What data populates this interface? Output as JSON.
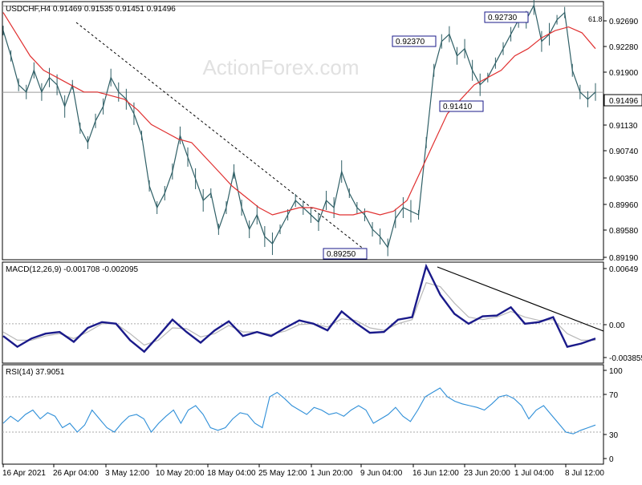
{
  "watermark": "ActionForex.com",
  "colors": {
    "price": "#2f5f66",
    "ma": "#e03030",
    "macd": "#1a1a8a",
    "macd_signal": "#b8b8b8",
    "rsi": "#2f8fd8",
    "trendline": "#000000",
    "level": "#9a9a9a",
    "label_box": "#1a1a8a",
    "frame": "#000000"
  },
  "chart_data": [
    {
      "type": "line",
      "panel": "price",
      "title": "USDCHF,H4  0.91469 0.91535 0.91451 0.91496",
      "ylim": [
        0.8919,
        0.9274
      ],
      "y_ticks": [
        "0.92690",
        "0.92280",
        "0.91900",
        "0.91496",
        "0.91130",
        "0.90740",
        "0.90350",
        "0.89960",
        "0.89580",
        "0.89190"
      ],
      "last_price": "0.91496",
      "fib_label": "61.8",
      "fib_level": 0.9269,
      "annotations": [
        {
          "label": "0.92730",
          "x": "1 Jul 2021",
          "y": 0.9273
        },
        {
          "label": "0.92370",
          "x": "18 Jun 2021",
          "y": 0.9237
        },
        {
          "label": "0.91410",
          "x": "21 Jun 2021",
          "y": 0.9141
        },
        {
          "label": "0.89250",
          "x": "11 Jun 2021",
          "y": 0.8925
        }
      ],
      "series": [
        {
          "name": "price",
          "values": [
            0.9235,
            0.92,
            0.916,
            0.915,
            0.918,
            0.915,
            0.917,
            0.916,
            0.913,
            0.916,
            0.91,
            0.908,
            0.911,
            0.913,
            0.917,
            0.915,
            0.914,
            0.912,
            0.909,
            0.902,
            0.899,
            0.901,
            0.904,
            0.909,
            0.906,
            0.903,
            0.9,
            0.901,
            0.896,
            0.899,
            0.904,
            0.899,
            0.896,
            0.898,
            0.895,
            0.894,
            0.896,
            0.898,
            0.9,
            0.899,
            0.898,
            0.897,
            0.9,
            0.899,
            0.904,
            0.901,
            0.899,
            0.898,
            0.896,
            0.895,
            0.8935,
            0.8975,
            0.899,
            0.8985,
            0.898,
            0.908,
            0.918,
            0.922,
            0.923,
            0.92,
            0.921,
            0.918,
            0.916,
            0.917,
            0.919,
            0.921,
            0.923,
            0.925,
            0.925,
            0.927,
            0.922,
            0.923,
            0.925,
            0.926,
            0.918,
            0.915,
            0.914,
            0.915
          ]
        },
        {
          "name": "MA",
          "values": [
            0.926,
            0.923,
            0.92,
            0.918,
            0.917,
            0.916,
            0.915,
            0.915,
            0.9145,
            0.914,
            0.9125,
            0.9105,
            0.9095,
            0.9085,
            0.908,
            0.906,
            0.904,
            0.902,
            0.9005,
            0.899,
            0.898,
            0.8985,
            0.899,
            0.899,
            0.8985,
            0.898,
            0.898,
            0.8985,
            0.898,
            0.8985,
            0.9,
            0.904,
            0.908,
            0.912,
            0.914,
            0.916,
            0.917,
            0.918,
            0.92,
            0.921,
            0.9225,
            0.9235,
            0.924,
            0.9232,
            0.921
          ]
        }
      ]
    },
    {
      "type": "line",
      "panel": "macd",
      "title": "MACD(12,26,9) -0.001708 -0.002095",
      "ylim": [
        -0.0045,
        0.0072
      ],
      "y_ticks": [
        "0.00649",
        "0.00",
        "-0.003855"
      ],
      "series": [
        {
          "name": "MACD",
          "values": [
            -0.0015,
            -0.0028,
            -0.0018,
            -0.0012,
            -0.001,
            -0.0022,
            -0.0005,
            0.0002,
            0.0,
            -0.002,
            -0.0034,
            -0.0015,
            0.0005,
            -0.001,
            -0.0023,
            -0.0008,
            0.0003,
            -0.0015,
            -0.001,
            -0.0015,
            -0.0005,
            0.0004,
            0.0,
            -0.0008,
            0.0015,
            0.0001,
            -0.0011,
            -0.001,
            0.0005,
            0.0008,
            0.007,
            0.0035,
            0.0012,
            0.0,
            0.0009,
            0.001,
            0.002,
            0.0,
            0.0002,
            0.0008,
            -0.0028,
            -0.0024,
            -0.0018
          ]
        },
        {
          "name": "Signal",
          "values": [
            -0.001,
            -0.002,
            -0.002,
            -0.0015,
            -0.0012,
            -0.0018,
            -0.001,
            0.0,
            0.0,
            -0.0012,
            -0.0026,
            -0.002,
            -0.0005,
            -0.0006,
            -0.0016,
            -0.0012,
            -0.0002,
            -0.001,
            -0.001,
            -0.0013,
            -0.0009,
            -0.0001,
            0.0,
            -0.0004,
            0.0006,
            0.0004,
            -0.0005,
            -0.0008,
            0.0,
            0.0005,
            0.005,
            0.0045,
            0.0025,
            0.0008,
            0.0005,
            0.0008,
            0.0015,
            0.0008,
            0.0004,
            0.0005,
            -0.0012,
            -0.002,
            -0.002
          ]
        }
      ]
    },
    {
      "type": "line",
      "panel": "rsi",
      "title": "RSI(14) 37.9051",
      "ylim": [
        0,
        100
      ],
      "y_ticks": [
        "100",
        "70",
        "30",
        "0"
      ],
      "levels": [
        70,
        30
      ],
      "series": [
        {
          "name": "RSI",
          "values": [
            40,
            48,
            42,
            50,
            55,
            45,
            52,
            48,
            35,
            40,
            30,
            38,
            55,
            45,
            35,
            30,
            40,
            48,
            50,
            45,
            30,
            40,
            48,
            55,
            40,
            55,
            60,
            50,
            35,
            32,
            35,
            45,
            52,
            50,
            40,
            35,
            70,
            75,
            68,
            60,
            55,
            50,
            58,
            55,
            50,
            52,
            48,
            55,
            60,
            55,
            40,
            45,
            50,
            58,
            48,
            42,
            55,
            70,
            75,
            80,
            70,
            65,
            62,
            60,
            58,
            55,
            62,
            70,
            72,
            68,
            60,
            45,
            55,
            60,
            50,
            40,
            30,
            28,
            32,
            35,
            38
          ]
        }
      ]
    }
  ],
  "x_labels": [
    "16 Apr 2021",
    "26 Apr 04:00",
    "3 May 12:00",
    "10 May 20:00",
    "18 May 04:00",
    "25 May 12:00",
    "1 Jun 20:00",
    "9 Jun 04:00",
    "16 Jun 12:00",
    "23 Jun 20:00",
    "1 Jul 04:00",
    "8 Jul 12:00"
  ],
  "labels": {
    "price_title": "USDCHF,H4  0.91469 0.91535 0.91451 0.91496",
    "macd_title": "MACD(12,26,9) -0.001708 -0.002095",
    "rsi_title": "RSI(14) 37.9051",
    "fib": "61.8",
    "last_price": "0.91496"
  }
}
